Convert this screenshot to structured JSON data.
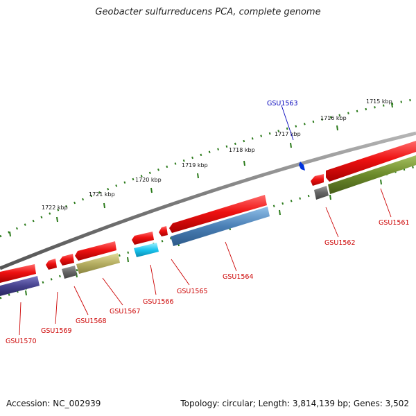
{
  "title": "Geobacter sulfurreducens PCA, complete genome",
  "footer": {
    "accession": "Accession: NC_002939",
    "summary": "Topology: circular; Length: 3,814,139 bp; Genes: 3,502"
  },
  "ruler": {
    "labels": [
      "1715 kbp",
      "1716 kbp",
      "1717 kbp",
      "1718 kbp",
      "1719 kbp",
      "1720 kbp",
      "1721 kbp",
      "1722 kbp"
    ]
  },
  "genes": [
    {
      "id": "GSU1561",
      "color": "#ee1111"
    },
    {
      "id": "GSU1562",
      "color": "#ee1111"
    },
    {
      "id": "GSU1563",
      "color": "#0000dd"
    },
    {
      "id": "GSU1564",
      "color": "#ee1111"
    },
    {
      "id": "GSU1565",
      "color": "#ee1111"
    },
    {
      "id": "GSU1566",
      "color": "#ee1111"
    },
    {
      "id": "GSU1567",
      "color": "#ee1111"
    },
    {
      "id": "GSU1568",
      "color": "#ee1111"
    },
    {
      "id": "GSU1569",
      "color": "#ee1111"
    },
    {
      "id": "GSU1570",
      "color": "#ee1111"
    }
  ],
  "colors": {
    "backbone": "#888888",
    "cds": "#ee1111",
    "label_red": "#cc0000",
    "label_blue": "#0000bb",
    "ruler_ticks": "#2a7a1a",
    "blue_bar": "#4a7fb5",
    "cyan_bar": "#19c4ee",
    "olive_bar": "#6b8a2a",
    "khaki_bar": "#b5ae62",
    "navy_bar": "#46428e",
    "gray_bar": "#666666"
  }
}
